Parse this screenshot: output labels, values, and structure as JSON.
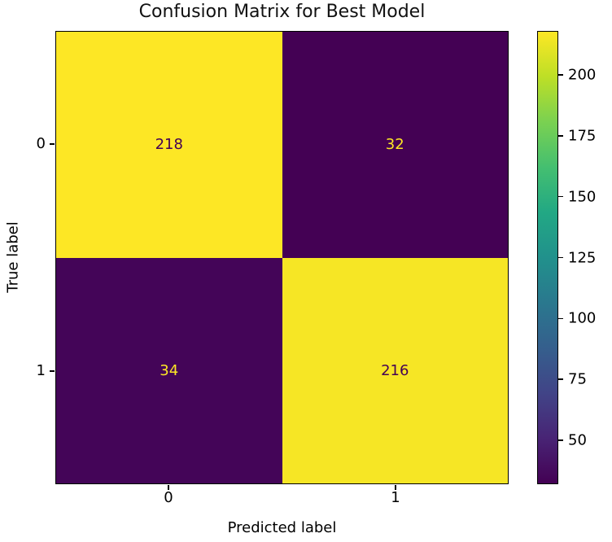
{
  "chart_data": {
    "type": "heatmap",
    "title": "Confusion Matrix for Best Model",
    "xlabel": "Predicted label",
    "ylabel": "True label",
    "x_tick_labels": [
      "0",
      "1"
    ],
    "y_tick_labels": [
      "0",
      "1"
    ],
    "matrix": [
      [
        218,
        32
      ],
      [
        34,
        216
      ]
    ],
    "vmin": 32,
    "vmax": 218,
    "colormap": "viridis",
    "colorbar_ticks": [
      50,
      75,
      100,
      125,
      150,
      175,
      200
    ],
    "legend_position": "right-colorbar",
    "grid": false,
    "colors": {
      "cell_high": "#fde725",
      "cell_low": "#440154",
      "text_on_high": "#440154",
      "text_on_low": "#fde725",
      "axis": "#000000",
      "viridis_stops": [
        "#440154",
        "#482475",
        "#414487",
        "#355f8d",
        "#2a788e",
        "#21918c",
        "#22a884",
        "#44bf70",
        "#7ad151",
        "#bddf26",
        "#fde725"
      ]
    }
  }
}
